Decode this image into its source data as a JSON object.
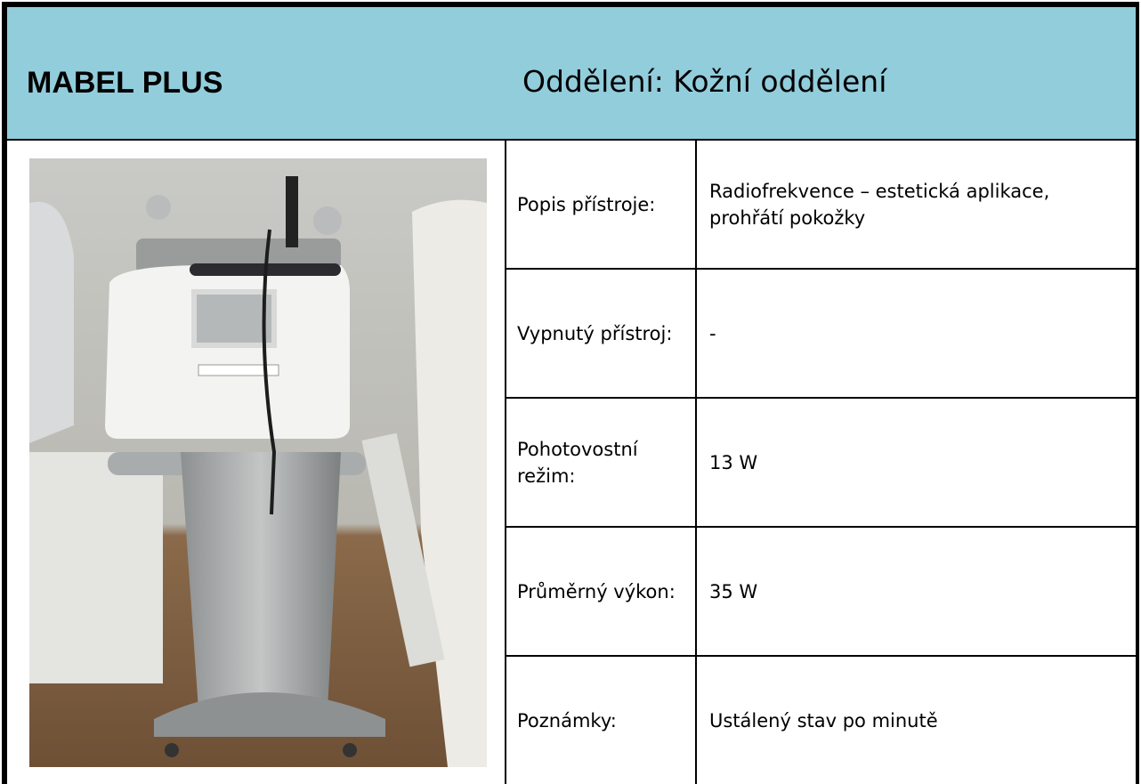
{
  "header": {
    "title": "MABEL PLUS",
    "department": "Oddělení: Kožní oddělení"
  },
  "table": {
    "rows": [
      [
        "Popis přístroje:",
        "Radiofrekvence – estetická aplikace, prohřátí pokožky"
      ],
      [
        "Vypnutý přístroj:",
        "-"
      ],
      [
        "Pohotovostní režim:",
        "13 W"
      ],
      [
        "Průměrný výkon:",
        "35 W"
      ],
      [
        "Poznámky:",
        "Ustálený stav po minutě"
      ]
    ]
  }
}
